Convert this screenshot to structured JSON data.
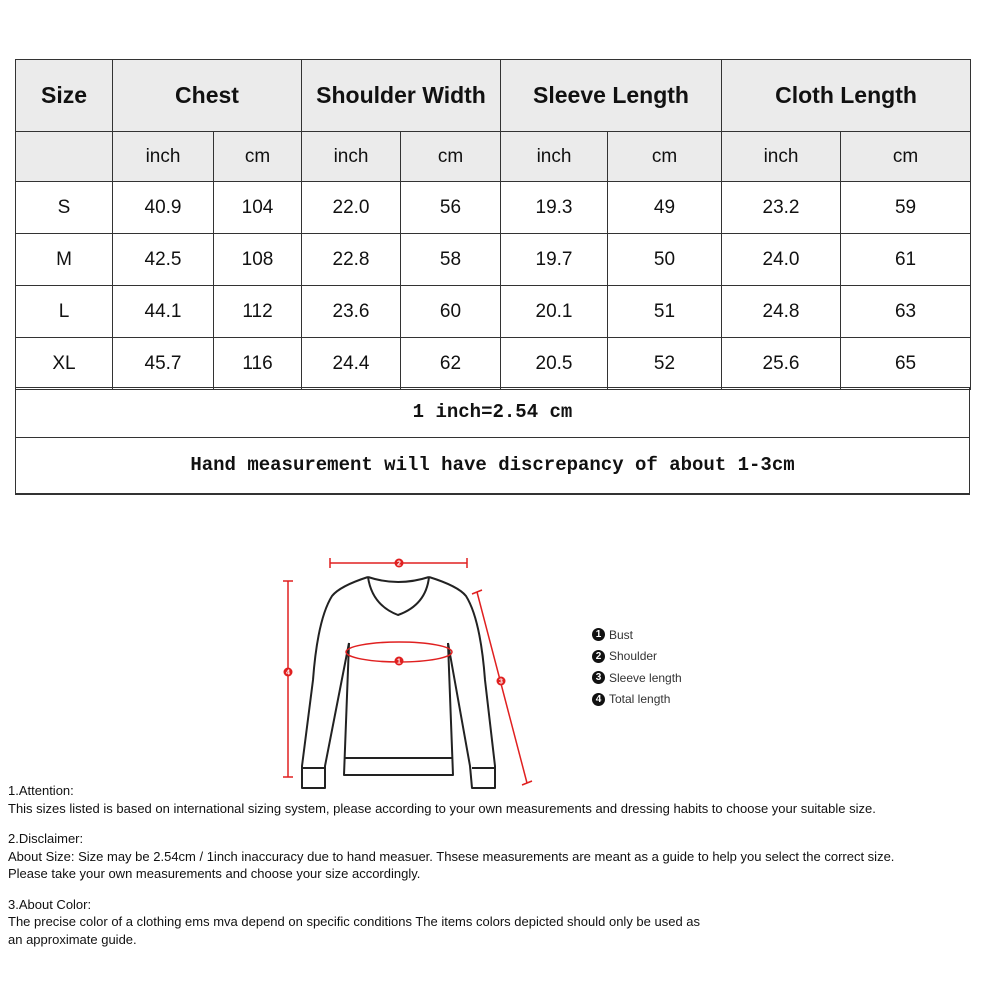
{
  "table": {
    "headers": [
      "Size",
      "Chest",
      "Shoulder Width",
      "Sleeve Length",
      "Cloth Length"
    ],
    "units": [
      "inch",
      "cm",
      "inch",
      "cm",
      "inch",
      "cm",
      "inch",
      "cm"
    ],
    "rows": [
      [
        "S",
        "40.9",
        "104",
        "22.0",
        "56",
        "19.3",
        "49",
        "23.2",
        "59"
      ],
      [
        "M",
        "42.5",
        "108",
        "22.8",
        "58",
        "19.7",
        "50",
        "24.0",
        "61"
      ],
      [
        "L",
        "44.1",
        "112",
        "23.6",
        "60",
        "20.1",
        "51",
        "24.8",
        "63"
      ],
      [
        "XL",
        "45.7",
        "116",
        "24.4",
        "62",
        "20.5",
        "52",
        "25.6",
        "65"
      ]
    ],
    "note1": "1 inch=2.54 cm",
    "note2": "Hand measurement will have discrepancy of about 1-3cm"
  },
  "diagram": {
    "accent_color": "#e02020",
    "marker_labels": [
      "1",
      "2",
      "3",
      "4"
    ],
    "legend": [
      {
        "num": "1",
        "label": "Bust"
      },
      {
        "num": "2",
        "label": "Shoulder"
      },
      {
        "num": "3",
        "label": "Sleeve length"
      },
      {
        "num": "4",
        "label": "Total length"
      }
    ]
  },
  "notes": [
    {
      "title": "1.Attention:",
      "lines": [
        "This sizes listed is based on international sizing system, please according to your own measurements and dressing habits to choose your suitable size."
      ]
    },
    {
      "title": "2.Disclaimer:",
      "lines": [
        "About Size: Size may be 2.54cm / 1inch inaccuracy due to hand measuer. Thsese measurements are meant as a guide to help you select the correct size.",
        "Please take your own measurements and choose your size accordingly."
      ]
    },
    {
      "title": "3.About Color:",
      "lines": [
        "The precise color of a clothing ems mva depend on specific conditions The items colors depicted should only be used as",
        "an approximate guide."
      ]
    }
  ]
}
